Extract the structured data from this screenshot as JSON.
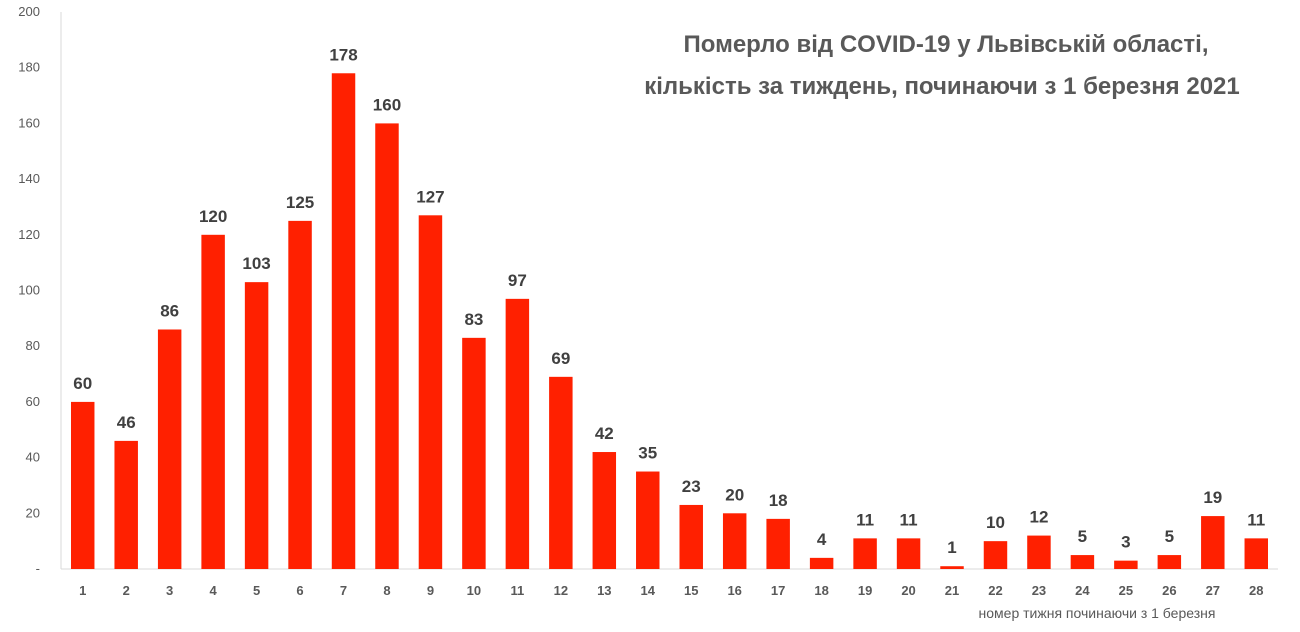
{
  "chart_data": {
    "type": "bar",
    "title_lines": [
      "Померло від COVID-19 у Львівській області,",
      "кількість за тиждень, починаючи з 1 березня 2021"
    ],
    "xlabel": "номер тижня починаючи з 1 березня",
    "ylabel": "",
    "categories": [
      "1",
      "2",
      "3",
      "4",
      "5",
      "6",
      "7",
      "8",
      "9",
      "10",
      "11",
      "12",
      "13",
      "14",
      "15",
      "16",
      "17",
      "18",
      "19",
      "20",
      "21",
      "22",
      "23",
      "24",
      "25",
      "26",
      "27",
      "28"
    ],
    "values": [
      60,
      46,
      86,
      120,
      103,
      125,
      178,
      160,
      127,
      83,
      97,
      69,
      42,
      35,
      23,
      20,
      18,
      4,
      11,
      11,
      1,
      10,
      12,
      5,
      3,
      5,
      19,
      11
    ],
    "ylim": [
      0,
      200
    ],
    "yticks": [
      0,
      20,
      40,
      60,
      80,
      100,
      120,
      140,
      160,
      180,
      200
    ],
    "ytick_labels": [
      "-",
      "20",
      "40",
      "60",
      "80",
      "100",
      "120",
      "140",
      "160",
      "180",
      "200"
    ],
    "bar_color": "#ff2000",
    "grid": false,
    "legend": "none",
    "data_labels": true
  }
}
